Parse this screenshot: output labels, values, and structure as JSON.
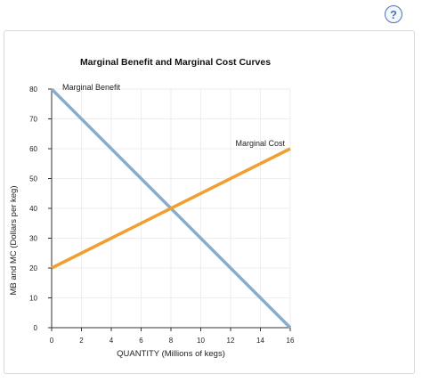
{
  "help_icon": {
    "glyph": "?",
    "name": "help-icon",
    "color": "#4a74b8"
  },
  "chart_data": {
    "type": "line",
    "title": "Marginal Benefit and Marginal Cost Curves",
    "xlabel": "QUANTITY (Millions of kegs)",
    "ylabel": "MB and MC (Dollars per keg)",
    "xlim": [
      0,
      16
    ],
    "ylim": [
      0,
      80
    ],
    "xticks": [
      0,
      2,
      4,
      6,
      8,
      10,
      12,
      14,
      16
    ],
    "yticks": [
      0,
      10,
      20,
      30,
      40,
      50,
      60,
      70,
      80
    ],
    "grid": true,
    "series": [
      {
        "name": "Marginal Benefit",
        "color": "#8aabcb",
        "points": [
          [
            0,
            80
          ],
          [
            16,
            0
          ]
        ]
      },
      {
        "name": "Marginal Cost",
        "color": "#f0a030",
        "points": [
          [
            0,
            20
          ],
          [
            16,
            60
          ]
        ]
      }
    ]
  }
}
